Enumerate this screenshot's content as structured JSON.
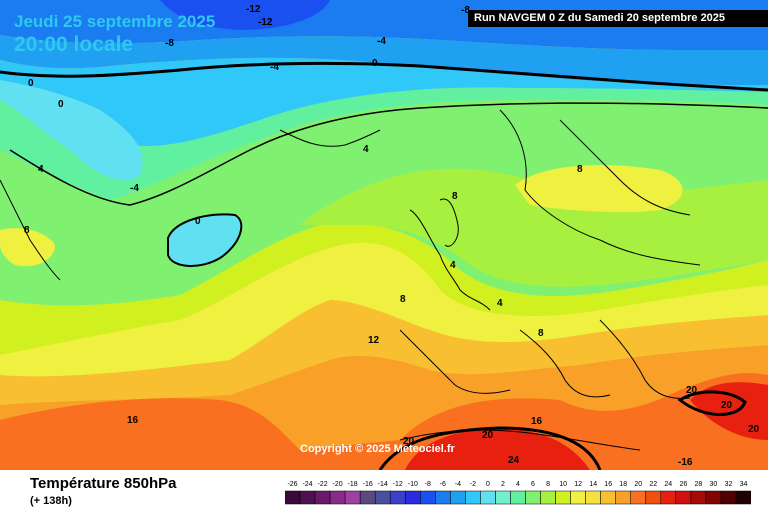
{
  "header": {
    "date": "Jeudi 25 septembre 2025",
    "time": "20:00 locale",
    "run": "Run NAVGEM 0 Z du Samedi 20 septembre 2025"
  },
  "copyright": "Copyright © 2025 Meteociel.fr",
  "footer": {
    "field": "Température 850hPa",
    "lead": "(+ 138h)"
  },
  "legend": {
    "values": [
      "-26",
      "-24",
      "-22",
      "-20",
      "-18",
      "-16",
      "-14",
      "-12",
      "-10",
      "-8",
      "-6",
      "-4",
      "-2",
      "0",
      "2",
      "4",
      "6",
      "8",
      "10",
      "12",
      "14",
      "16",
      "18",
      "20",
      "22",
      "24",
      "26",
      "28",
      "30",
      "32",
      "34"
    ],
    "colors": [
      "#3a0a3a",
      "#4f1250",
      "#6a1a6a",
      "#8a2a8a",
      "#a040a0",
      "#5a4a80",
      "#4a50a0",
      "#3a40c8",
      "#2a2ae0",
      "#1a50f0",
      "#1a7cf0",
      "#20a0f0",
      "#30c8f8",
      "#60e0f0",
      "#70f0d0",
      "#60f0a0",
      "#80f070",
      "#a8f040",
      "#d0f020",
      "#f0f040",
      "#f8e040",
      "#f8c030",
      "#f8a028",
      "#f87020",
      "#f05010",
      "#e82010",
      "#d01010",
      "#a80808",
      "#800404",
      "#500000",
      "#200000"
    ]
  },
  "map_labels": [
    {
      "text": "-12"
    },
    {
      "text": "-12"
    },
    {
      "text": "-8"
    },
    {
      "text": "-8"
    },
    {
      "text": "-4"
    },
    {
      "text": "-4"
    },
    {
      "text": "0"
    },
    {
      "text": "0"
    },
    {
      "text": "0"
    },
    {
      "text": "4"
    },
    {
      "text": "4"
    },
    {
      "text": "-4"
    },
    {
      "text": "0"
    },
    {
      "text": "8"
    },
    {
      "text": "8"
    },
    {
      "text": "8"
    },
    {
      "text": "8"
    },
    {
      "text": "4"
    },
    {
      "text": "4"
    },
    {
      "text": "8"
    },
    {
      "text": "12"
    },
    {
      "text": "16"
    },
    {
      "text": "16"
    },
    {
      "text": "20"
    },
    {
      "text": "20"
    },
    {
      "text": "20"
    },
    {
      "text": "20"
    },
    {
      "text": "20"
    },
    {
      "text": "24"
    },
    {
      "text": "-16"
    }
  ]
}
